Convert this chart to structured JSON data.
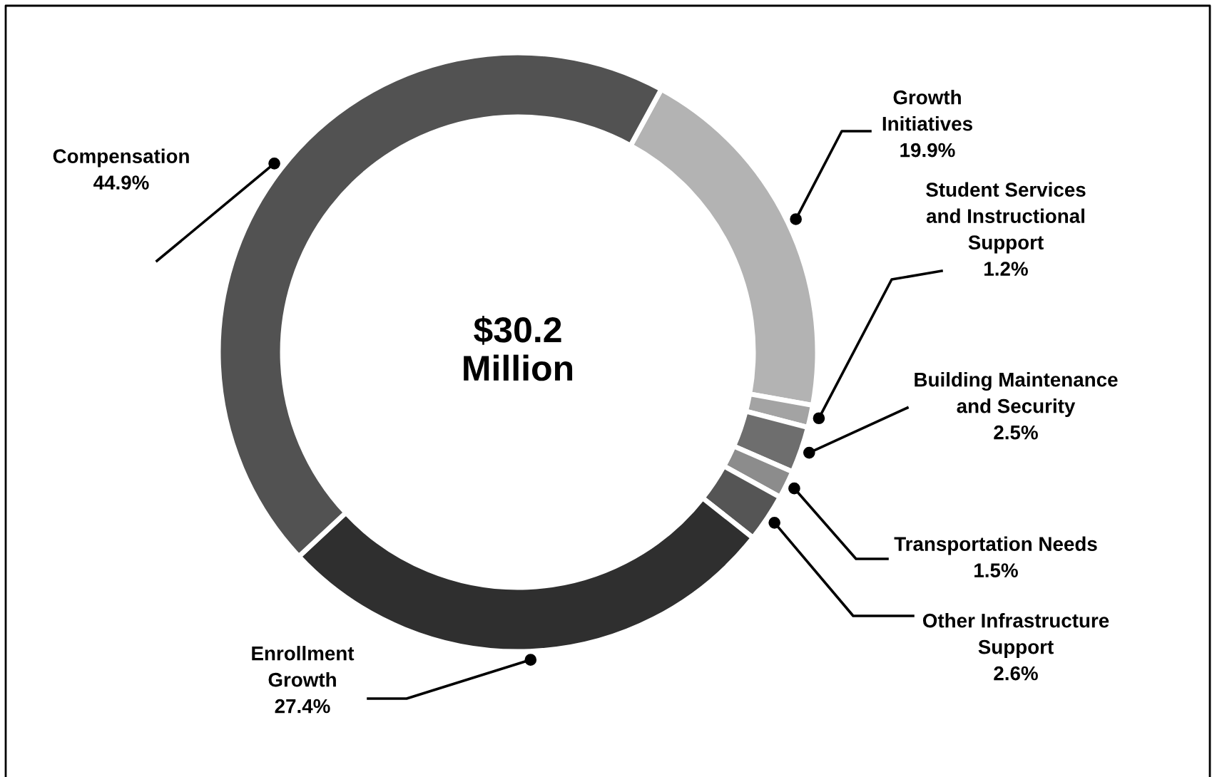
{
  "chart_data": {
    "type": "donut",
    "categories": [
      "Growth\nInitiatives",
      "Student Services\nand Instructional\nSupport",
      "Building Maintenance\nand Security",
      "Transportation Needs",
      "Other Infrastructure\nSupport",
      "Enrollment\nGrowth",
      "Compensation"
    ],
    "values": [
      19.9,
      1.2,
      2.5,
      1.5,
      2.6,
      27.4,
      44.9
    ],
    "value_labels": [
      "19.9%",
      "1.2%",
      "2.5%",
      "1.5%",
      "2.6%",
      "27.4%",
      "44.9%"
    ],
    "colors": [
      "#b3b3b3",
      "#a3a3a3",
      "#6e6e6e",
      "#8c8c8c",
      "#555555",
      "#2f2f2f",
      "#525252"
    ],
    "annotations": [
      "$30.2\nMillion"
    ]
  }
}
